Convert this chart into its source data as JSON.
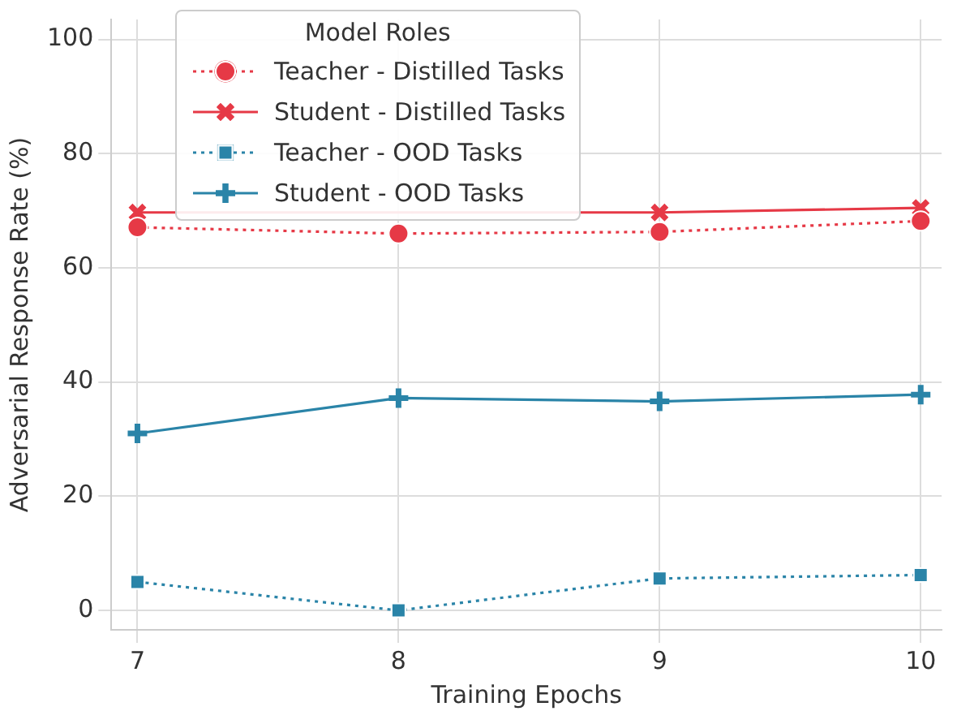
{
  "chart_data": {
    "type": "line",
    "xlabel": "Training Epochs",
    "ylabel": "Adversarial Response Rate (%)",
    "legend_title": "Model Roles",
    "legend": "top left",
    "grid": true,
    "x": [
      7,
      8,
      9,
      10
    ],
    "xlim": [
      6.9,
      10.08
    ],
    "xticks": [
      7,
      8,
      9,
      10
    ],
    "ylim": [
      -3.4,
      103.5
    ],
    "yticks": [
      0,
      20,
      40,
      60,
      80,
      100
    ],
    "series": [
      {
        "name": "Teacher - Distilled Tasks",
        "color": "#e63946",
        "marker": "circle",
        "line_style": "dotted",
        "values": [
          67.1,
          66.0,
          66.3,
          68.2
        ]
      },
      {
        "name": "Student - Distilled Tasks",
        "color": "#e63946",
        "marker": "cross",
        "line_style": "solid",
        "values": [
          69.7,
          null,
          69.7,
          70.5
        ]
      },
      {
        "name": "Teacher - OOD Tasks",
        "color": "#2a84a8",
        "marker": "square",
        "line_style": "dotted",
        "values": [
          5.0,
          0.0,
          5.6,
          6.2
        ]
      },
      {
        "name": "Student - OOD Tasks",
        "color": "#2a84a8",
        "marker": "plus",
        "line_style": "solid",
        "values": [
          31.0,
          37.2,
          36.6,
          37.8
        ]
      }
    ]
  }
}
